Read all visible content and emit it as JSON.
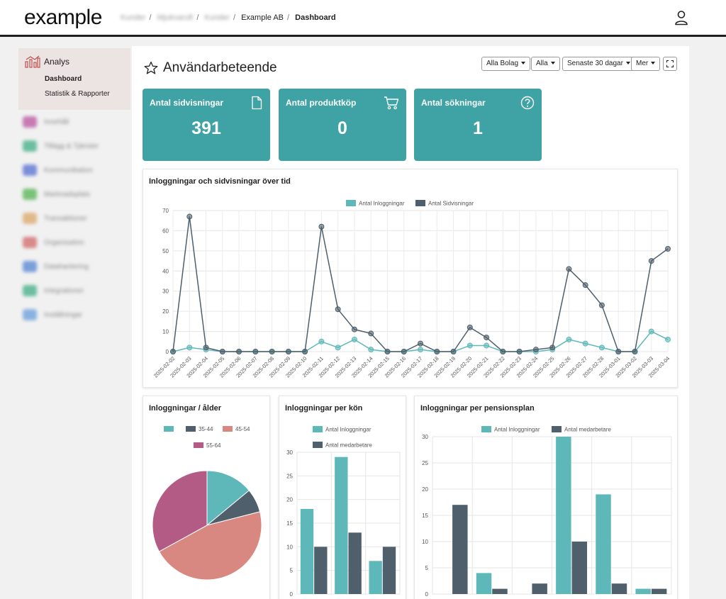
{
  "header": {
    "logo": "example",
    "breadcrumbs": [
      "Kunder",
      "Mjukvaruft",
      "Kunder",
      "Example AB",
      "Dashboard"
    ],
    "user_icon": "user-icon"
  },
  "sidebar": {
    "section": {
      "label": "Analys",
      "icon": "chart-icon"
    },
    "subitems": [
      "Dashboard",
      "Statistik & Rapporter"
    ],
    "blurred_items": [
      {
        "label": "Innehåll",
        "color": "#c77ab3"
      },
      {
        "label": "Tillägg & Tjänster",
        "color": "#6bbfa0"
      },
      {
        "label": "Kommunikation",
        "color": "#7b8fd9"
      },
      {
        "label": "Marknadsplats",
        "color": "#7ac27a"
      },
      {
        "label": "Transaktioner",
        "color": "#e0b98a"
      },
      {
        "label": "Organisation",
        "color": "#d98a8a"
      },
      {
        "label": "Datahantering",
        "color": "#7a9fd9"
      },
      {
        "label": "Integrationer",
        "color": "#6bbfa0"
      },
      {
        "label": "Inställningar",
        "color": "#8ab2e0"
      }
    ]
  },
  "page": {
    "title": "Användarbeteende",
    "filters": [
      "Alla Bolag",
      "Alla",
      "Senaste 30 dagar",
      "Mer"
    ]
  },
  "kpis": [
    {
      "label": "Antal sidvisningar",
      "value": "391",
      "icon": "file-icon"
    },
    {
      "label": "Antal produktköp",
      "value": "0",
      "icon": "cart-icon"
    },
    {
      "label": "Antal sökningar",
      "value": "1",
      "icon": "question-icon"
    }
  ],
  "colors": {
    "teal": "#5eb7b9",
    "slate": "#4f5f6b",
    "salmon": "#d98781",
    "plum": "#b35a85",
    "kpi_bg": "#3fa3a5"
  },
  "chart_data": [
    {
      "type": "line",
      "title": "Inloggningar och sidvisningar över tid",
      "x": [
        "2025-02-02",
        "2025-02-03",
        "2025-02-04",
        "2025-02-05",
        "2025-02-06",
        "2025-02-07",
        "2025-02-08",
        "2025-02-09",
        "2025-02-10",
        "2025-02-11",
        "2025-02-12",
        "2025-02-13",
        "2025-02-14",
        "2025-02-15",
        "2025-02-16",
        "2025-02-17",
        "2025-02-18",
        "2025-02-19",
        "2025-02-20",
        "2025-02-21",
        "2025-02-22",
        "2025-02-23",
        "2025-02-24",
        "2025-02-25",
        "2025-02-26",
        "2025-02-27",
        "2025-02-28",
        "2025-03-01",
        "2025-03-02",
        "2025-03-03",
        "2025-03-04"
      ],
      "series": [
        {
          "name": "Antal Inloggningar",
          "color": "#5eb7b9",
          "values": [
            0,
            2,
            1,
            0,
            0,
            0,
            0,
            0,
            0,
            5,
            2,
            6,
            1,
            0,
            0,
            1,
            0,
            0,
            3,
            3,
            0,
            0,
            0,
            1,
            6,
            4,
            2,
            0,
            0,
            10,
            6
          ]
        },
        {
          "name": "Antal Sidvisningar",
          "color": "#4f5f6b",
          "values": [
            0,
            67,
            2,
            0,
            0,
            0,
            0,
            0,
            0,
            62,
            21,
            11,
            9,
            0,
            0,
            4,
            0,
            0,
            12,
            7,
            0,
            0,
            1,
            2,
            41,
            33,
            23,
            0,
            0,
            45,
            51
          ]
        }
      ],
      "ylim": [
        0,
        70
      ],
      "yticks": [
        0,
        10,
        20,
        30,
        40,
        50,
        60,
        70
      ],
      "legend": "top",
      "grid": true
    },
    {
      "type": "pie",
      "title": "Inloggningar / ålder",
      "categories": [
        "",
        "35-44",
        "45-54",
        "55-64"
      ],
      "values": [
        14,
        7,
        46,
        33
      ],
      "colors": [
        "#5eb7b9",
        "#4f5f6b",
        "#d98781",
        "#b35a85"
      ],
      "legend": "top"
    },
    {
      "type": "bar",
      "title": "Inloggningar per kön",
      "categories": [
        "",
        "",
        ""
      ],
      "series": [
        {
          "name": "Antal Inloggningar",
          "color": "#5eb7b9",
          "values": [
            18,
            29,
            7
          ]
        },
        {
          "name": "Antal medarbetare",
          "color": "#4f5f6b",
          "values": [
            10,
            13,
            10
          ]
        }
      ],
      "ylim": [
        0,
        30
      ],
      "yticks": [
        0,
        5,
        10,
        15,
        20,
        25,
        30
      ],
      "legend": "top",
      "grid": true
    },
    {
      "type": "bar",
      "title": "Inloggningar per pensionsplan",
      "categories": [
        "",
        "",
        "",
        "",
        "",
        ""
      ],
      "series": [
        {
          "name": "Antal Inloggningar",
          "color": "#5eb7b9",
          "values": [
            0,
            4,
            0,
            30,
            19,
            1
          ]
        },
        {
          "name": "Antal medarbetare",
          "color": "#4f5f6b",
          "values": [
            17,
            1,
            2,
            10,
            2,
            1
          ]
        }
      ],
      "ylim": [
        0,
        30
      ],
      "yticks": [
        0,
        5,
        10,
        15,
        20,
        25,
        30
      ],
      "legend": "top",
      "grid": true
    }
  ]
}
